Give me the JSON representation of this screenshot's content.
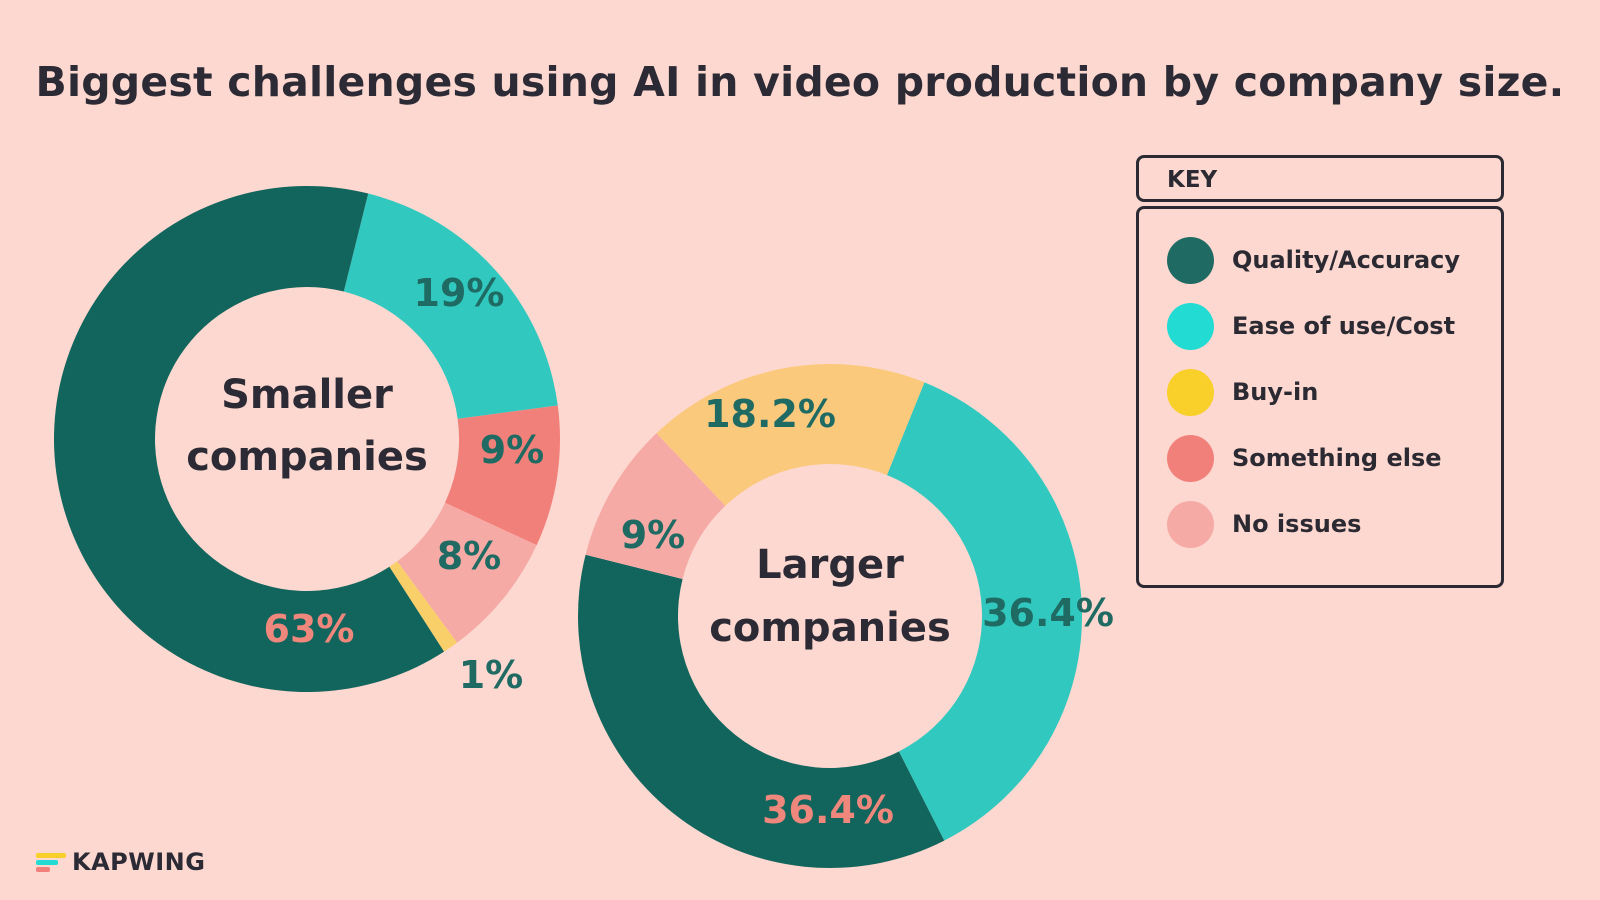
{
  "title": "Biggest challenges using AI in video production by company size.",
  "key": {
    "header": "KEY",
    "items": [
      {
        "label": "Quality/Accuracy",
        "color": "#1f6b63"
      },
      {
        "label": "Ease of use/Cost",
        "color": "#22dcd4"
      },
      {
        "label": "Buy-in",
        "color": "#f9cf2a"
      },
      {
        "label": "Something else",
        "color": "#f2807a"
      },
      {
        "label": "No issues",
        "color": "#f6aaa6"
      }
    ]
  },
  "logo": {
    "text": "KAPWING",
    "colors": [
      "#f9cf2a",
      "#22dcd4",
      "#f2807a"
    ]
  },
  "chart_data": [
    {
      "type": "pie",
      "center_label": [
        "Smaller",
        "companies"
      ],
      "slices": [
        {
          "category": "Ease of use/Cost",
          "value": 19,
          "label": "19%",
          "color": "#31c9bf",
          "label_color": "#1f6b63"
        },
        {
          "category": "Something else",
          "value": 9,
          "label": "9%",
          "color": "#f2807a",
          "label_color": "#1f6b63"
        },
        {
          "category": "No issues",
          "value": 8,
          "label": "8%",
          "color": "#f6aaa6",
          "label_color": "#1f6b63"
        },
        {
          "category": "Buy-in",
          "value": 1,
          "label": "1%",
          "color": "#f9cf6a",
          "label_color": "#1f6b63"
        },
        {
          "category": "Quality/Accuracy",
          "value": 63,
          "label": "63%",
          "color": "#12655c",
          "label_color": "#f0877c"
        }
      ]
    },
    {
      "type": "pie",
      "center_label": [
        "Larger",
        "companies"
      ],
      "slices": [
        {
          "category": "Ease of use/Cost",
          "value": 36.4,
          "label": "36.4%",
          "color": "#31c9bf",
          "label_color": "#1f6b63"
        },
        {
          "category": "Quality/Accuracy",
          "value": 36.4,
          "label": "36.4%",
          "color": "#12655c",
          "label_color": "#f0877c"
        },
        {
          "category": "No issues",
          "value": 9,
          "label": "9%",
          "color": "#f6aaa6",
          "label_color": "#1f6b63"
        },
        {
          "category": "Buy-in",
          "value": 18.2,
          "label": "18.2%",
          "color": "#fbc97c",
          "label_color": "#1f6b63"
        }
      ]
    }
  ]
}
